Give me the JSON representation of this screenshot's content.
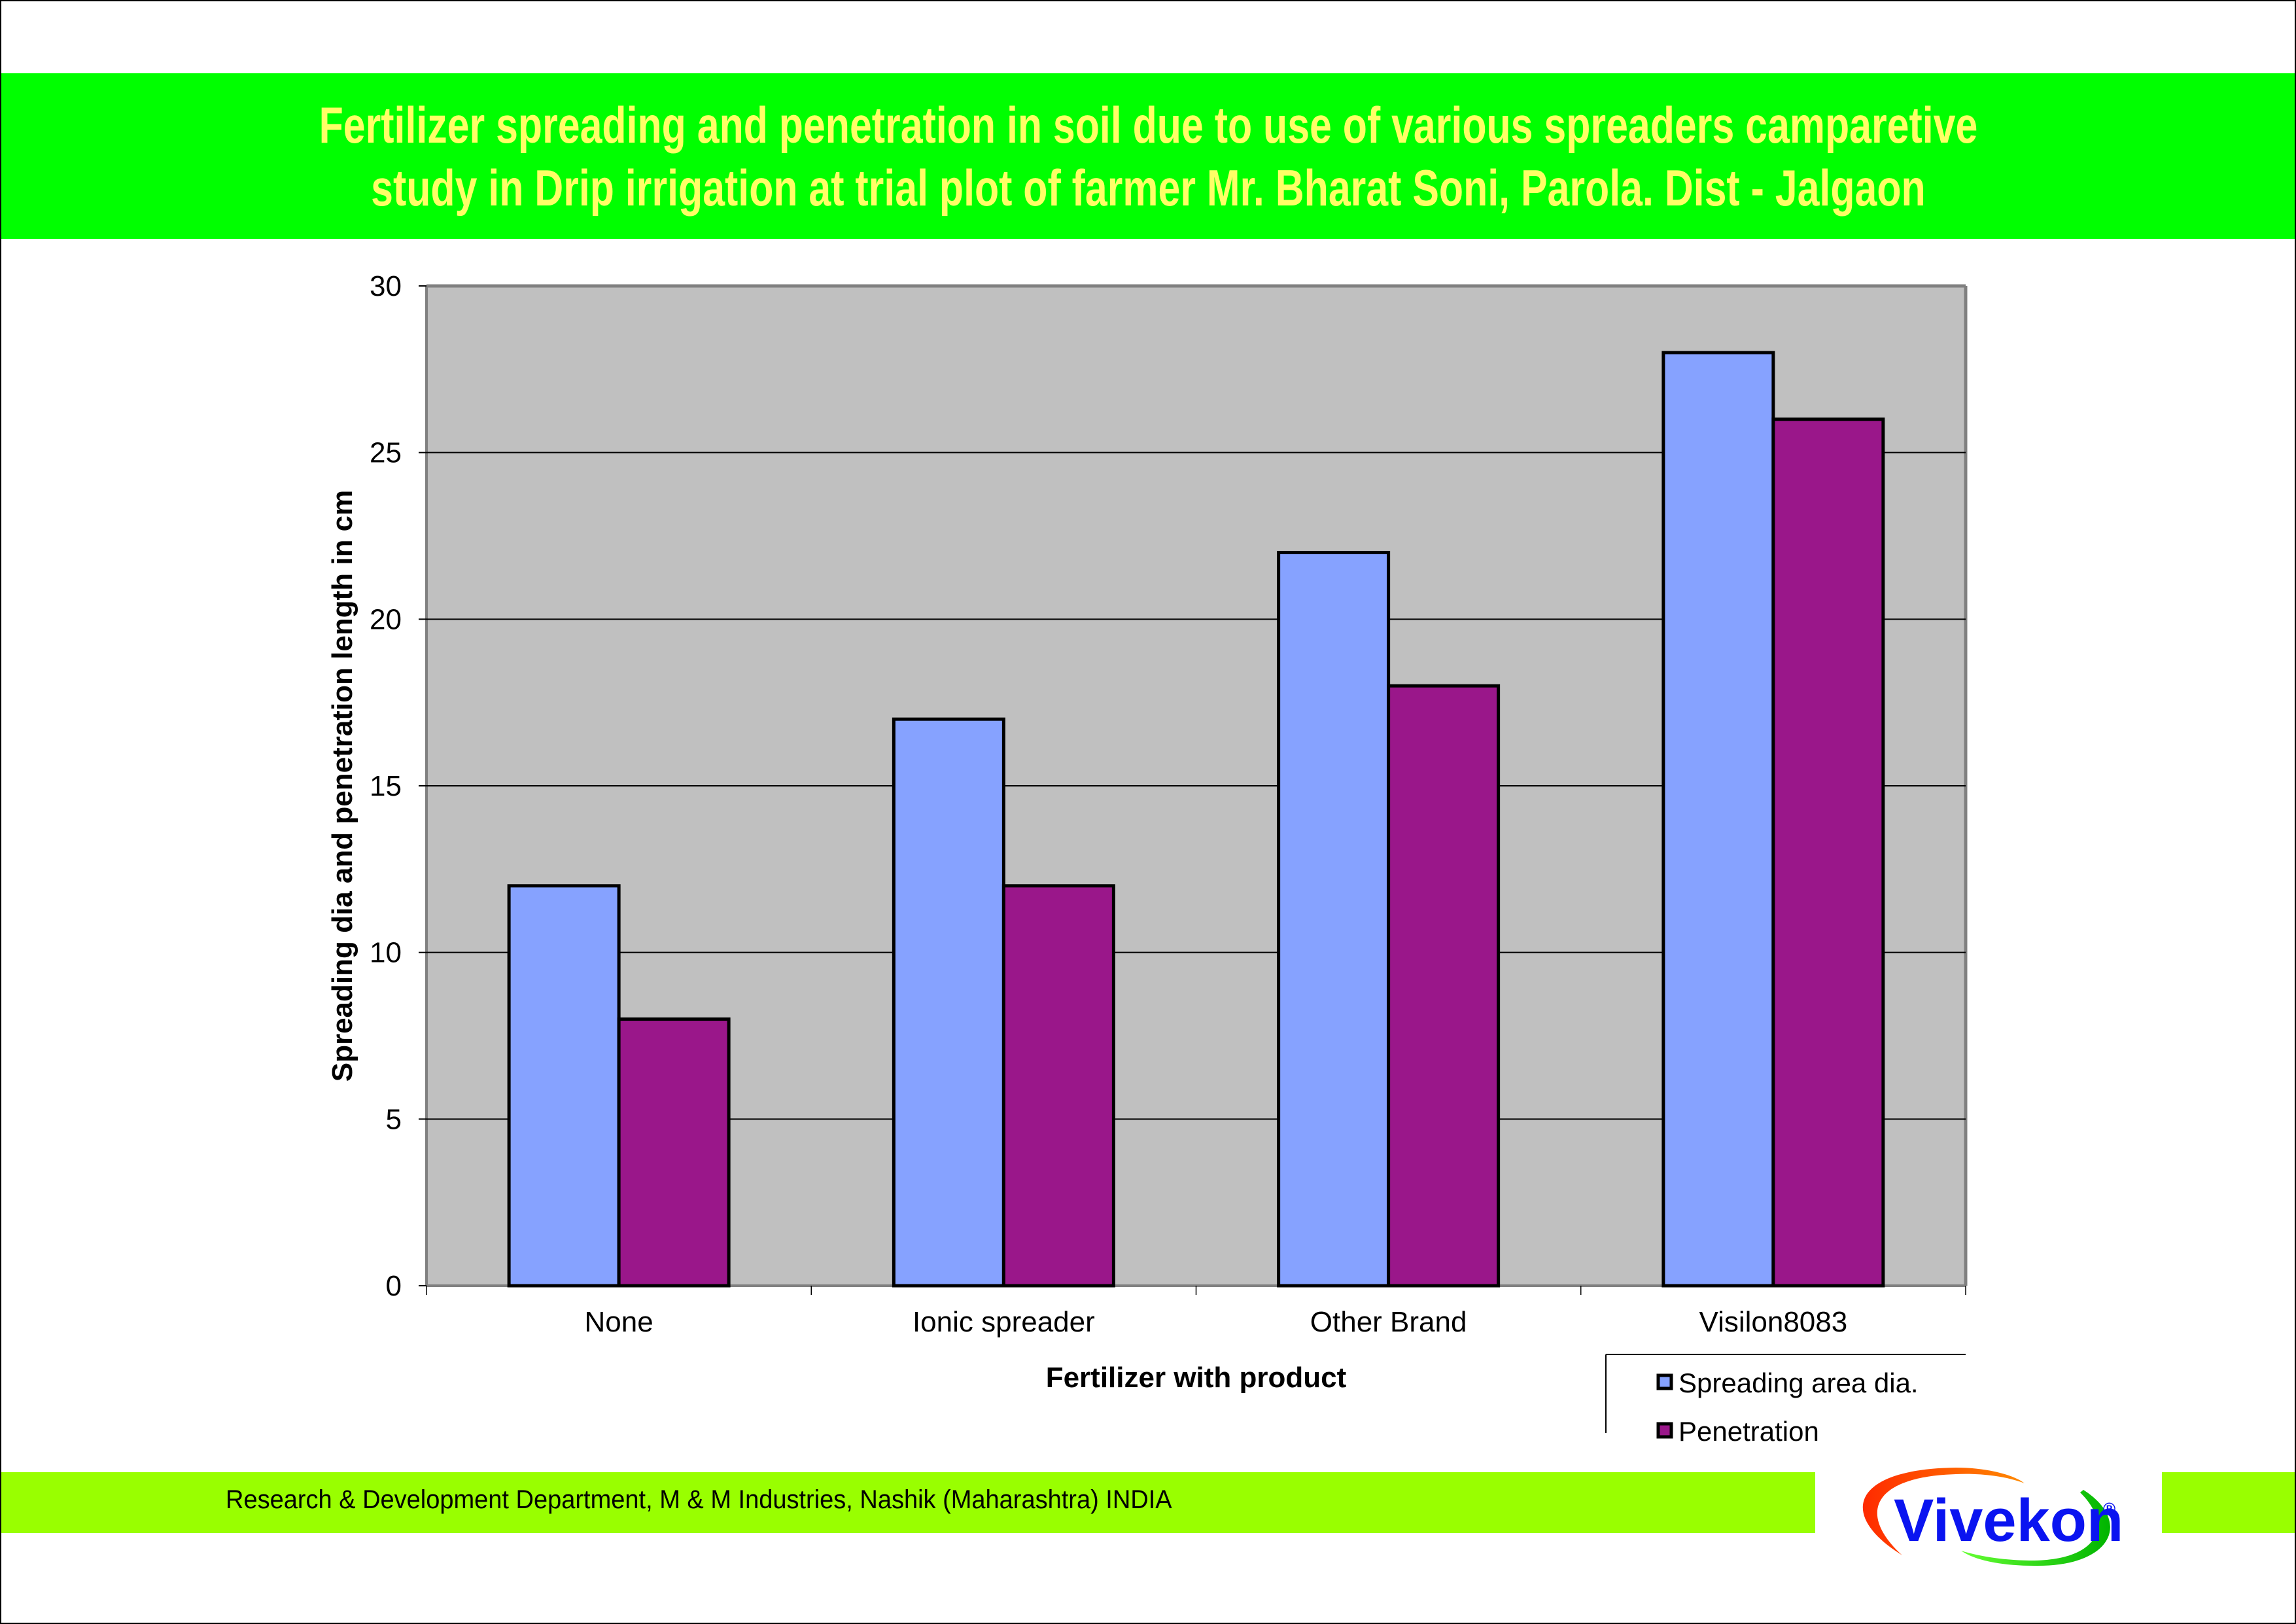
{
  "header": {
    "title_lines": [
      "Fertilizer spreading and penetration in soil due to use of various spreaders camparetive",
      "study in Drip irrigation at trial plot of farmer Mr. Bharat Soni, Parola. Dist - Jalgaon"
    ]
  },
  "footer": {
    "text": "Research & Development Department, M & M Industries, Nashik (Maharashtra) INDIA",
    "logo_text": "Vivekon",
    "logo_mark": "®"
  },
  "colors": {
    "title_band": "#00ff00",
    "title_text": "#ffff66",
    "footer_band": "#99ff00",
    "plot_bg": "#c0c0c0",
    "logo_text": "#0a14f0"
  },
  "chart_data": {
    "type": "bar",
    "title": "Fertilizer spreading and penetration in soil due to use of various spreaders camparetive study in Drip irrigation at trial plot of farmer Mr. Bharat Soni, Parola. Dist - Jalgaon",
    "xlabel": "Fertilizer with product",
    "ylabel": "Spreading dia and penetration length in cm",
    "categories": [
      "None",
      "Ionic spreader",
      "Other Brand",
      "Visilon8083"
    ],
    "series": [
      {
        "name": "Spreading area dia.",
        "color": "#86a2ff",
        "values": [
          12,
          17,
          22,
          28
        ]
      },
      {
        "name": "Penetration",
        "color": "#9a178a",
        "values": [
          8,
          12,
          18,
          26
        ]
      }
    ],
    "ylim": [
      0,
      30
    ],
    "yticks": [
      0,
      5,
      10,
      15,
      20,
      25,
      30
    ],
    "grid": true,
    "legend": "bottom-right"
  }
}
